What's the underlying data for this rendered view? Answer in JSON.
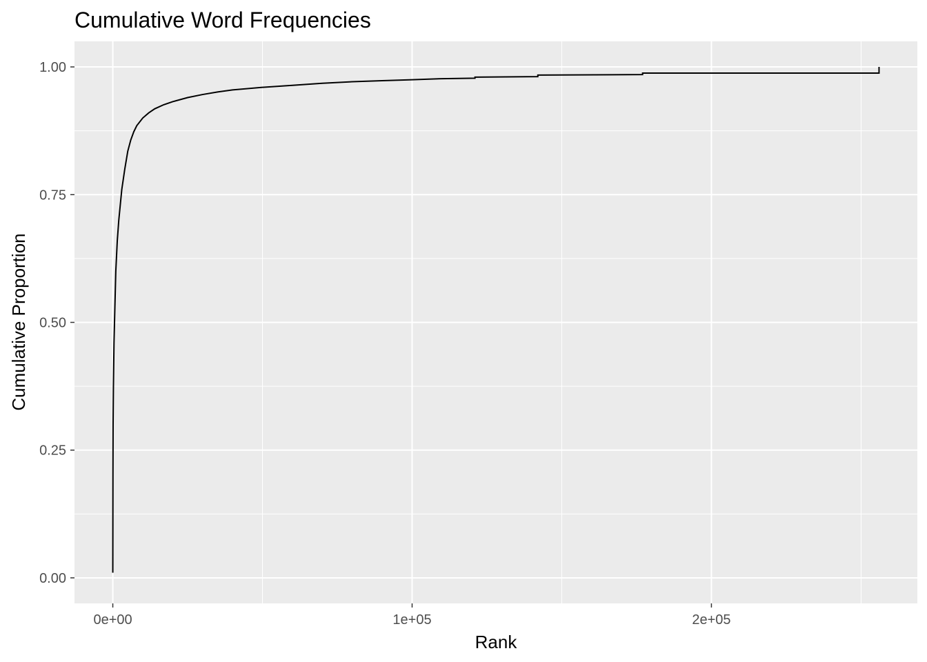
{
  "chart_data": {
    "type": "line",
    "title": "Cumulative Word Frequencies",
    "xlabel": "Rank",
    "ylabel": "Cumulative Proportion",
    "xlim": [
      -12800,
      268800
    ],
    "ylim": [
      -0.05,
      1.05
    ],
    "x_ticks": [
      {
        "value": 0,
        "label": "0e+00"
      },
      {
        "value": 100000,
        "label": "1e+05"
      },
      {
        "value": 200000,
        "label": "2e+05"
      }
    ],
    "x_minor_ticks": [
      50000,
      150000,
      250000
    ],
    "y_ticks": [
      {
        "value": 0,
        "label": "0.00"
      },
      {
        "value": 0.25,
        "label": "0.25"
      },
      {
        "value": 0.5,
        "label": "0.50"
      },
      {
        "value": 0.75,
        "label": "0.75"
      },
      {
        "value": 1.0,
        "label": "1.00"
      }
    ],
    "y_minor_ticks": [
      0.125,
      0.375,
      0.625,
      0.875
    ],
    "grid": true,
    "legend": "none",
    "colors": {
      "panel": "#ebebeb",
      "grid": "#ffffff",
      "line": "#000000",
      "tick_text": "#4d4d4d"
    },
    "series": [
      {
        "x": [
          0,
          10,
          50,
          100,
          200,
          400,
          700,
          1000,
          1500,
          2000,
          3000,
          4000,
          5000,
          6000,
          7000,
          8000,
          10000,
          12000,
          14000,
          17000,
          20000,
          25000,
          30000,
          35000,
          40000,
          50000,
          60000,
          70000,
          80000,
          90000,
          100000,
          110000,
          121000,
          121001,
          142000,
          142001,
          177000,
          177001,
          256000,
          256001,
          256000
        ],
        "y": [
          0.01,
          0.05,
          0.2,
          0.3,
          0.37,
          0.46,
          0.53,
          0.6,
          0.66,
          0.7,
          0.76,
          0.8,
          0.835,
          0.857,
          0.873,
          0.885,
          0.9,
          0.91,
          0.918,
          0.926,
          0.932,
          0.94,
          0.946,
          0.951,
          0.955,
          0.96,
          0.964,
          0.968,
          0.971,
          0.973,
          0.975,
          0.977,
          0.978,
          0.98,
          0.981,
          0.984,
          0.985,
          0.988,
          0.988,
          0.988,
          1.0
        ]
      }
    ]
  }
}
